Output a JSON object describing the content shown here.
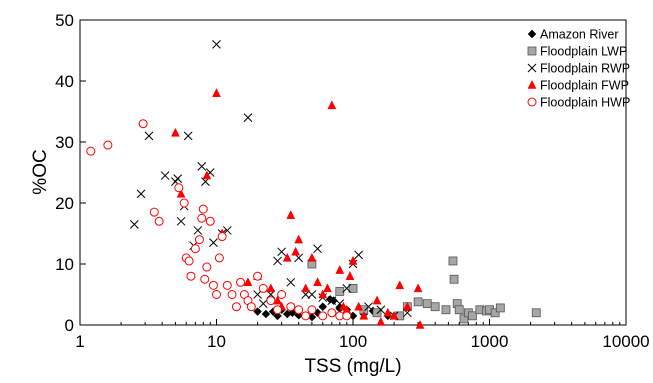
{
  "chart_data": {
    "type": "scatter",
    "title": "",
    "xlabel": "TSS (mg/L)",
    "ylabel": "%OC",
    "x_scale": "log",
    "xlim": [
      1,
      10000
    ],
    "ylim": [
      0,
      50
    ],
    "x_ticks": [
      1,
      10,
      100,
      1000,
      10000
    ],
    "x_tick_labels": [
      "1",
      "10",
      "100",
      "1000",
      "10000"
    ],
    "y_ticks": [
      0,
      10,
      20,
      30,
      40,
      50
    ],
    "y_tick_labels": [
      "0",
      "10",
      "20",
      "30",
      "40",
      "50"
    ],
    "grid": false,
    "legend_position": "top-right",
    "series": [
      {
        "name": "Amazon River",
        "marker": "diamond",
        "color": "#000000",
        "points": [
          [
            20,
            2.2
          ],
          [
            23,
            1.8
          ],
          [
            26,
            2.2
          ],
          [
            28,
            1.5
          ],
          [
            30,
            2.5
          ],
          [
            33,
            1.8
          ],
          [
            36,
            2
          ],
          [
            40,
            1.6
          ],
          [
            45,
            1.5
          ],
          [
            50,
            1.3
          ],
          [
            55,
            2
          ],
          [
            60,
            3
          ],
          [
            68,
            4.2
          ],
          [
            72,
            4
          ],
          [
            80,
            2.7
          ],
          [
            90,
            2.5
          ],
          [
            100,
            1.5
          ],
          [
            120,
            1.8
          ],
          [
            140,
            2.3
          ],
          [
            180,
            1.5
          ]
        ]
      },
      {
        "name": "Floodplain LWP",
        "marker": "square",
        "color": "#a6a6a6",
        "points": [
          [
            50,
            10
          ],
          [
            80,
            5.5
          ],
          [
            100,
            6
          ],
          [
            120,
            2.5
          ],
          [
            150,
            2
          ],
          [
            220,
            1.5
          ],
          [
            250,
            3
          ],
          [
            300,
            3.8
          ],
          [
            350,
            3.5
          ],
          [
            400,
            3
          ],
          [
            480,
            2.5
          ],
          [
            540,
            10.5
          ],
          [
            550,
            7.5
          ],
          [
            580,
            3.5
          ],
          [
            600,
            2.5
          ],
          [
            650,
            1
          ],
          [
            700,
            2
          ],
          [
            750,
            1.5
          ],
          [
            850,
            2.5
          ],
          [
            950,
            2.3
          ],
          [
            1000,
            2.5
          ],
          [
            1100,
            2
          ],
          [
            1200,
            2.8
          ],
          [
            2200,
            2
          ]
        ]
      },
      {
        "name": "Floodplain RWP",
        "marker": "x",
        "color": "#000000",
        "points": [
          [
            2.5,
            16.5
          ],
          [
            2.8,
            21.5
          ],
          [
            3.2,
            31
          ],
          [
            4.2,
            24.5
          ],
          [
            5,
            23.5
          ],
          [
            5.2,
            24
          ],
          [
            5.5,
            17
          ],
          [
            5.8,
            19.5
          ],
          [
            6.2,
            31
          ],
          [
            6.8,
            13
          ],
          [
            7.3,
            15.5
          ],
          [
            7.8,
            26
          ],
          [
            8.3,
            23.5
          ],
          [
            9,
            25
          ],
          [
            9.5,
            13.5
          ],
          [
            10,
            46
          ],
          [
            11,
            15
          ],
          [
            12,
            15.5
          ],
          [
            17,
            34
          ],
          [
            20,
            5
          ],
          [
            22,
            3.5
          ],
          [
            25,
            5
          ],
          [
            28,
            10.5
          ],
          [
            30,
            12
          ],
          [
            35,
            7
          ],
          [
            40,
            11
          ],
          [
            45,
            5
          ],
          [
            50,
            5
          ],
          [
            55,
            12.5
          ],
          [
            60,
            4.5
          ],
          [
            70,
            4
          ],
          [
            80,
            3.5
          ],
          [
            90,
            6
          ],
          [
            100,
            10
          ],
          [
            110,
            11.5
          ],
          [
            130,
            3
          ],
          [
            160,
            2.5
          ],
          [
            200,
            1.5
          ],
          [
            250,
            2
          ]
        ]
      },
      {
        "name": "Floodplain FWP",
        "marker": "triangle",
        "color": "#ff0000",
        "points": [
          [
            5,
            31.5
          ],
          [
            5.5,
            21.5
          ],
          [
            8.5,
            24.5
          ],
          [
            10,
            38
          ],
          [
            11,
            15
          ],
          [
            17,
            7
          ],
          [
            20,
            8
          ],
          [
            25,
            6
          ],
          [
            28,
            4
          ],
          [
            30,
            3
          ],
          [
            33,
            11
          ],
          [
            35,
            18
          ],
          [
            38,
            12
          ],
          [
            40,
            14
          ],
          [
            45,
            6
          ],
          [
            50,
            11
          ],
          [
            55,
            7
          ],
          [
            60,
            5
          ],
          [
            65,
            6
          ],
          [
            70,
            36
          ],
          [
            80,
            9
          ],
          [
            85,
            3
          ],
          [
            90,
            2.5
          ],
          [
            95,
            8
          ],
          [
            100,
            10.5
          ],
          [
            110,
            3
          ],
          [
            120,
            1.5
          ],
          [
            150,
            4
          ],
          [
            160,
            0.5
          ],
          [
            180,
            2
          ],
          [
            200,
            1.5
          ],
          [
            220,
            6.5
          ],
          [
            250,
            3
          ],
          [
            300,
            6
          ],
          [
            310,
            0
          ]
        ]
      },
      {
        "name": "Floodplain HWP",
        "marker": "circle",
        "color": "#ff0000",
        "points": [
          [
            1.2,
            28.5
          ],
          [
            1.6,
            29.5
          ],
          [
            2.9,
            33
          ],
          [
            3.5,
            18.5
          ],
          [
            3.8,
            17
          ],
          [
            5.3,
            22.5
          ],
          [
            5.8,
            20
          ],
          [
            6,
            11
          ],
          [
            6.3,
            10.5
          ],
          [
            6.5,
            8
          ],
          [
            7,
            12.5
          ],
          [
            7.5,
            14
          ],
          [
            7.8,
            17.5
          ],
          [
            8,
            19
          ],
          [
            8.2,
            7.5
          ],
          [
            8.5,
            9.5
          ],
          [
            9,
            17
          ],
          [
            9.5,
            6.5
          ],
          [
            10,
            5
          ],
          [
            10.5,
            11
          ],
          [
            11,
            14.5
          ],
          [
            12,
            6.5
          ],
          [
            13,
            5
          ],
          [
            14,
            3
          ],
          [
            15,
            7
          ],
          [
            16,
            5
          ],
          [
            17,
            4
          ],
          [
            18,
            3
          ],
          [
            20,
            8
          ],
          [
            22,
            6
          ],
          [
            25,
            4
          ],
          [
            28,
            2.5
          ],
          [
            30,
            5
          ],
          [
            35,
            3
          ],
          [
            40,
            2.5
          ],
          [
            45,
            1.5
          ],
          [
            50,
            2.5
          ],
          [
            60,
            1.5
          ],
          [
            70,
            2
          ],
          [
            80,
            1.5
          ],
          [
            90,
            1.5
          ]
        ]
      }
    ]
  }
}
